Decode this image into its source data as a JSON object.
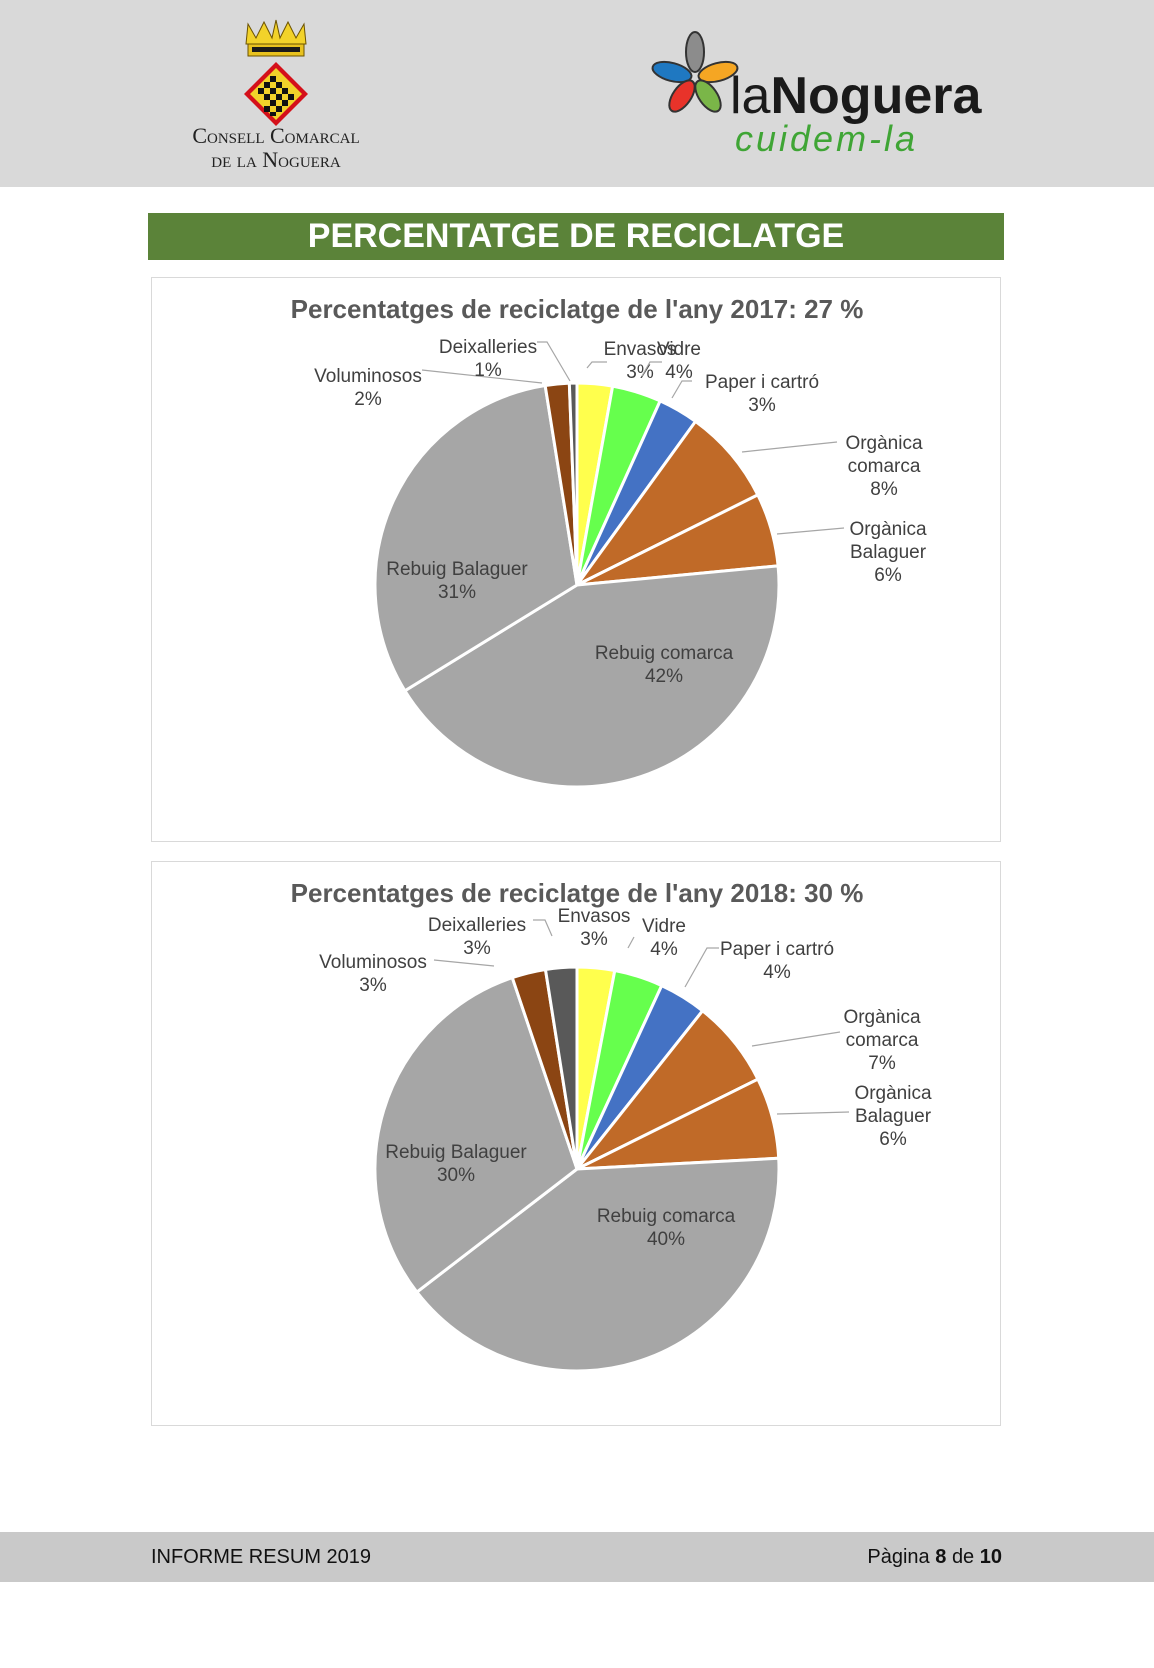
{
  "header": {
    "left_logo_lines": [
      "Consell Comarcal",
      "de la Noguera"
    ],
    "right_logo_title_a": "la",
    "right_logo_title_b": "Noguera",
    "right_logo_slogan": "cuidem-la"
  },
  "banner_title": "PERCENTATGE DE RECICLATGE",
  "colors": {
    "banner": "#5b8339",
    "grey": "#a6a6a6",
    "orange": "#c06a28",
    "blue": "#4472c4",
    "green": "#66ff4d",
    "yellow": "#ffff4d",
    "brown": "#8b4513",
    "darkgrey": "#595959"
  },
  "chart_data": [
    {
      "type": "pie",
      "title": "Percentatges de reciclatge de l'any 2017: 27 %",
      "categories": [
        "Envasos",
        "Vidre",
        "Paper i cartró",
        "Orgànica comarca",
        "Orgànica Balaguer",
        "Rebuig comarca",
        "Rebuig Balaguer",
        "Voluminosos",
        "Deixalleries"
      ],
      "values": [
        2.8,
        3.9,
        3.2,
        7.6,
        5.8,
        42.4,
        31.0,
        1.9,
        0.6
      ],
      "labels": [
        "3%",
        "4%",
        "3%",
        "8%",
        "6%",
        "42%",
        "31%",
        "2%",
        "1%"
      ],
      "colors": [
        "#ffff4d",
        "#66ff4d",
        "#4472c4",
        "#c06a28",
        "#c06a28",
        "#a6a6a6",
        "#a6a6a6",
        "#8b4513",
        "#595959"
      ]
    },
    {
      "type": "pie",
      "title": "Percentatges de reciclatge de l'any 2018: 30 %",
      "categories": [
        "Envasos",
        "Vidre",
        "Paper i cartró",
        "Orgànica comarca",
        "Orgànica Balaguer",
        "Rebuig comarca",
        "Rebuig Balaguer",
        "Voluminosos",
        "Deixalleries"
      ],
      "values": [
        3.0,
        3.9,
        3.8,
        7.0,
        6.5,
        40.5,
        30.3,
        2.7,
        2.5
      ],
      "labels": [
        "3%",
        "4%",
        "4%",
        "7%",
        "6%",
        "40%",
        "30%",
        "3%",
        "3%"
      ],
      "colors": [
        "#ffff4d",
        "#66ff4d",
        "#4472c4",
        "#c06a28",
        "#c06a28",
        "#a6a6a6",
        "#a6a6a6",
        "#8b4513",
        "#595959"
      ]
    }
  ],
  "footer": {
    "left": "INFORME RESUM 2019",
    "page_prefix": "Pàgina",
    "page_current": "8",
    "page_sep": "de",
    "page_total": "10"
  }
}
